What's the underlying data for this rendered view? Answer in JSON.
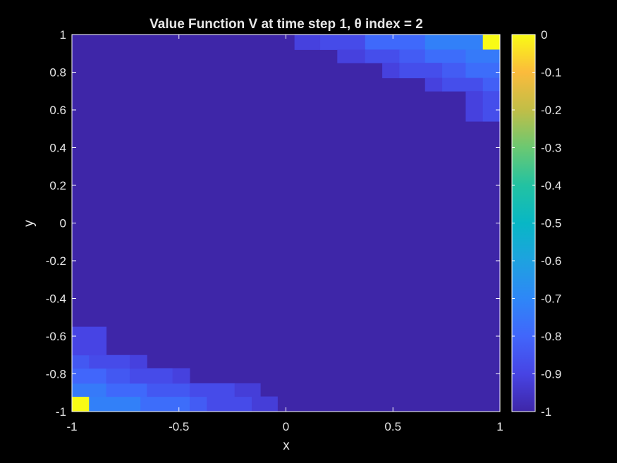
{
  "chart_data": {
    "type": "heatmap",
    "title": "Value Function V at time step 1, θ index = 2",
    "xlabel": "x",
    "ylabel": "y",
    "xlim": [
      -1,
      1
    ],
    "ylim": [
      -1,
      1
    ],
    "clim": [
      -1,
      0
    ],
    "colormap": "parula",
    "grid": false,
    "x_ticks": [
      "-1",
      "-0.5",
      "0",
      "0.5",
      "1"
    ],
    "y_ticks": [
      "-1",
      "-0.8",
      "-0.6",
      "-0.4",
      "-0.2",
      "0",
      "0.2",
      "0.4",
      "0.6",
      "0.8",
      "1"
    ],
    "colorbar_ticks": [
      "0",
      "-0.1",
      "-0.2",
      "-0.3",
      "-0.4",
      "-0.5",
      "-0.6",
      "-0.7",
      "-0.8",
      "-0.9",
      "-1"
    ],
    "background_value": -1,
    "cells": [
      {
        "x": [
          -1,
          -0.92
        ],
        "y": [
          -1,
          -0.92
        ],
        "value": 0
      },
      {
        "x": [
          -0.92,
          -0.68
        ],
        "y": [
          -1,
          -0.92
        ],
        "value": -0.72
      },
      {
        "x": [
          -0.68,
          -0.45
        ],
        "y": [
          -1,
          -0.92
        ],
        "value": -0.78
      },
      {
        "x": [
          -0.45,
          -0.37
        ],
        "y": [
          -1,
          -0.92
        ],
        "value": -0.83
      },
      {
        "x": [
          -0.37,
          -0.16
        ],
        "y": [
          -1,
          -0.92
        ],
        "value": -0.88
      },
      {
        "x": [
          -0.16,
          -0.04
        ],
        "y": [
          -1,
          -0.92
        ],
        "value": -0.92
      },
      {
        "x": [
          -1,
          -0.84
        ],
        "y": [
          -0.92,
          -0.85
        ],
        "value": -0.74
      },
      {
        "x": [
          -0.84,
          -0.65
        ],
        "y": [
          -0.92,
          -0.85
        ],
        "value": -0.79
      },
      {
        "x": [
          -0.65,
          -0.45
        ],
        "y": [
          -0.92,
          -0.85
        ],
        "value": -0.84
      },
      {
        "x": [
          -0.45,
          -0.24
        ],
        "y": [
          -0.92,
          -0.85
        ],
        "value": -0.88
      },
      {
        "x": [
          -0.24,
          -0.12
        ],
        "y": [
          -0.92,
          -0.85
        ],
        "value": -0.92
      },
      {
        "x": [
          -1,
          -0.84
        ],
        "y": [
          -0.85,
          -0.77
        ],
        "value": -0.8
      },
      {
        "x": [
          -0.84,
          -0.73
        ],
        "y": [
          -0.85,
          -0.77
        ],
        "value": -0.84
      },
      {
        "x": [
          -0.73,
          -0.53
        ],
        "y": [
          -0.85,
          -0.77
        ],
        "value": -0.88
      },
      {
        "x": [
          -0.53,
          -0.45
        ],
        "y": [
          -0.85,
          -0.77
        ],
        "value": -0.91
      },
      {
        "x": [
          -1,
          -0.92
        ],
        "y": [
          -0.77,
          -0.7
        ],
        "value": -0.84
      },
      {
        "x": [
          -0.92,
          -0.73
        ],
        "y": [
          -0.77,
          -0.7
        ],
        "value": -0.88
      },
      {
        "x": [
          -0.73,
          -0.65
        ],
        "y": [
          -0.77,
          -0.7
        ],
        "value": -0.91
      },
      {
        "x": [
          -1,
          -0.84
        ],
        "y": [
          -0.7,
          -0.55
        ],
        "value": -0.9
      },
      {
        "x": [
          0.04,
          0.16
        ],
        "y": [
          0.92,
          1
        ],
        "value": -0.91
      },
      {
        "x": [
          0.16,
          0.37
        ],
        "y": [
          0.92,
          1
        ],
        "value": -0.88
      },
      {
        "x": [
          0.37,
          0.65
        ],
        "y": [
          0.92,
          1
        ],
        "value": -0.79
      },
      {
        "x": [
          0.65,
          0.92
        ],
        "y": [
          0.92,
          1
        ],
        "value": -0.72
      },
      {
        "x": [
          0.92,
          1
        ],
        "y": [
          0.92,
          1
        ],
        "value": 0
      },
      {
        "x": [
          0.24,
          0.37
        ],
        "y": [
          0.85,
          0.92
        ],
        "value": -0.91
      },
      {
        "x": [
          0.37,
          0.53
        ],
        "y": [
          0.85,
          0.92
        ],
        "value": -0.87
      },
      {
        "x": [
          0.53,
          0.65
        ],
        "y": [
          0.85,
          0.92
        ],
        "value": -0.83
      },
      {
        "x": [
          0.65,
          0.84
        ],
        "y": [
          0.85,
          0.92
        ],
        "value": -0.78
      },
      {
        "x": [
          0.84,
          1
        ],
        "y": [
          0.85,
          0.92
        ],
        "value": -0.74
      },
      {
        "x": [
          0.45,
          0.53
        ],
        "y": [
          0.77,
          0.85
        ],
        "value": -0.91
      },
      {
        "x": [
          0.53,
          0.73
        ],
        "y": [
          0.77,
          0.85
        ],
        "value": -0.87
      },
      {
        "x": [
          0.73,
          0.84
        ],
        "y": [
          0.77,
          0.85
        ],
        "value": -0.83
      },
      {
        "x": [
          0.84,
          1
        ],
        "y": [
          0.77,
          0.85
        ],
        "value": -0.78
      },
      {
        "x": [
          0.65,
          0.73
        ],
        "y": [
          0.7,
          0.77
        ],
        "value": -0.91
      },
      {
        "x": [
          0.73,
          0.92
        ],
        "y": [
          0.7,
          0.77
        ],
        "value": -0.87
      },
      {
        "x": [
          0.92,
          1
        ],
        "y": [
          0.7,
          0.77
        ],
        "value": -0.82
      },
      {
        "x": [
          0.84,
          0.92
        ],
        "y": [
          0.54,
          0.7
        ],
        "value": -0.91
      },
      {
        "x": [
          0.92,
          1
        ],
        "y": [
          0.54,
          0.7
        ],
        "value": -0.87
      }
    ]
  }
}
